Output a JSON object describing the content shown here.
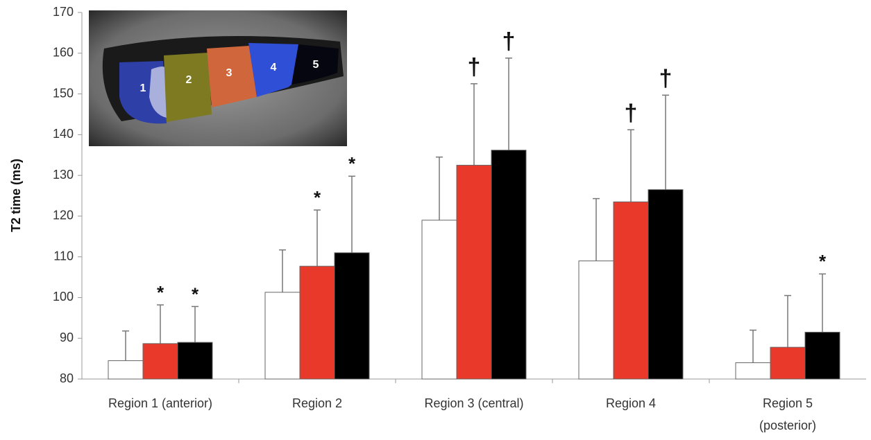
{
  "chart_data": {
    "type": "bar",
    "y_label": "T2 time (ms)",
    "categories": [
      [
        "Region 1 (anterior)"
      ],
      [
        "Region 2"
      ],
      [
        "Region 3 (central)"
      ],
      [
        "Region 4"
      ],
      [
        "Region 5",
        "(posterior)"
      ]
    ],
    "series": [
      {
        "color": "#ffffff",
        "values": [
          84.5,
          101.3,
          119,
          109,
          84
        ],
        "errors": [
          7.3,
          10.4,
          15.5,
          15.3,
          8
        ],
        "markers": [
          null,
          null,
          null,
          null,
          null
        ]
      },
      {
        "color": "#e8392a",
        "values": [
          88.7,
          107.7,
          132.5,
          123.5,
          87.8
        ],
        "errors": [
          9.5,
          13.8,
          20,
          17.7,
          12.7
        ],
        "markers": [
          "*",
          "*",
          "†",
          "†",
          null
        ]
      },
      {
        "color": "#000000",
        "values": [
          89,
          111,
          136.2,
          126.5,
          91.5
        ],
        "errors": [
          8.8,
          18.8,
          22.6,
          23.2,
          14.3
        ],
        "markers": [
          "*",
          "*",
          "†",
          "†",
          "*"
        ]
      }
    ],
    "ylim": [
      80,
      170
    ],
    "yticks": [
      80,
      90,
      100,
      110,
      120,
      130,
      140,
      150,
      160,
      170
    ],
    "inset_labels": [
      "1",
      "2",
      "3",
      "4",
      "5"
    ]
  }
}
